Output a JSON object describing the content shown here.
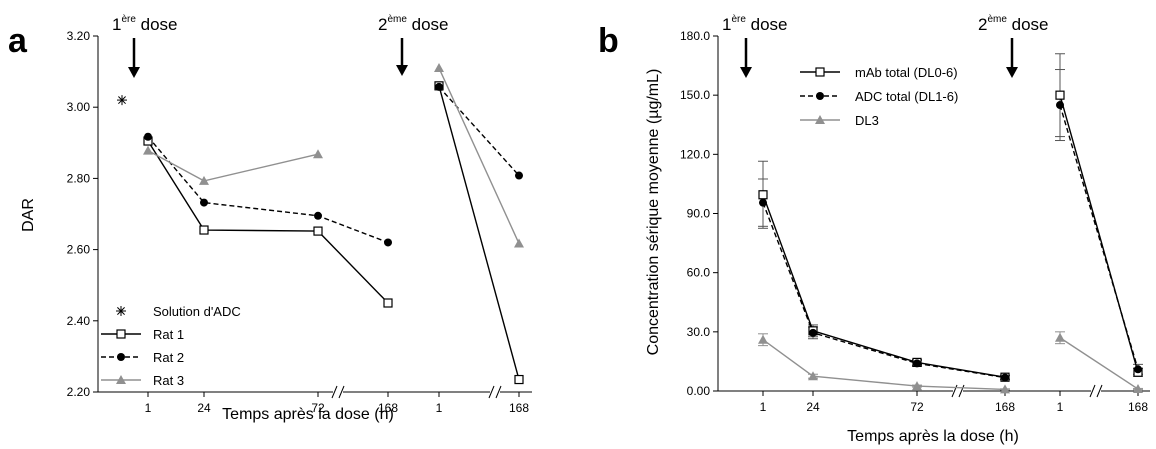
{
  "chart_data": [
    {
      "panel": "a",
      "type": "line",
      "xlabel": "Temps après la dose (h)",
      "ylabel": "DAR",
      "ylim": [
        2.2,
        3.2
      ],
      "yticks": [
        "2.20",
        "2.40",
        "2.60",
        "2.80",
        "3.00",
        "3.20"
      ],
      "xticks": [
        "1",
        "24",
        "72",
        "168",
        "1",
        "168"
      ],
      "annotations": [
        {
          "base": "1",
          "sup": "ère",
          "rest": " dose"
        },
        {
          "base": "2",
          "sup": "ème",
          "rest": " dose"
        }
      ],
      "legend": {
        "position": "bottom-left"
      },
      "reference": {
        "name": "Solution d'ADC",
        "value": 3.02
      },
      "series": [
        {
          "name": "Rat 1",
          "color": "#000000",
          "dash": "solid",
          "marker": "open-square",
          "values": [
            2.905,
            2.655,
            2.652,
            2.45,
            3.06,
            2.235
          ]
        },
        {
          "name": "Rat 2",
          "color": "#000000",
          "dash": "dashed",
          "marker": "filled-circle",
          "values": [
            2.917,
            2.732,
            2.695,
            2.62,
            3.057,
            2.808
          ]
        },
        {
          "name": "Rat 3",
          "color": "#909090",
          "dash": "solid",
          "marker": "filled-triangle",
          "values": [
            2.878,
            2.793,
            2.868,
            null,
            3.11,
            2.617
          ]
        }
      ]
    },
    {
      "panel": "b",
      "type": "line",
      "xlabel": "Temps après la dose (h)",
      "ylabel": "Concentration sérique moyenne (µg/mL)",
      "ylim": [
        0,
        180
      ],
      "yticks": [
        "0.00",
        "30.0",
        "60.0",
        "90.0",
        "120.0",
        "150.0",
        "180.0"
      ],
      "xticks": [
        "1",
        "24",
        "72",
        "168",
        "1",
        "168"
      ],
      "annotations": [
        {
          "base": "1",
          "sup": "ère",
          "rest": " dose"
        },
        {
          "base": "2",
          "sup": "ème",
          "rest": " dose"
        }
      ],
      "legend": {
        "position": "top-left"
      },
      "series": [
        {
          "name": "mAb total (DL0-6)",
          "color": "#000000",
          "dash": "solid",
          "marker": "open-square",
          "values": [
            99.5,
            30.5,
            14.5,
            7.0,
            150.0,
            9.5
          ],
          "errors": [
            17,
            3,
            1.5,
            1,
            21,
            2
          ]
        },
        {
          "name": "ADC total (DL1-6)",
          "color": "#000000",
          "dash": "dashed",
          "marker": "filled-circle",
          "values": [
            95.5,
            29.5,
            14.0,
            6.8,
            145.0,
            11.0
          ],
          "errors": [
            12,
            3,
            1.5,
            1,
            18,
            2.5
          ]
        },
        {
          "name": "DL3",
          "color": "#909090",
          "dash": "solid",
          "marker": "filled-triangle",
          "values": [
            26.0,
            7.5,
            2.5,
            0.8,
            27.0,
            1.0
          ],
          "errors": [
            3,
            1,
            0.5,
            0.3,
            3,
            0.3
          ]
        }
      ]
    }
  ]
}
